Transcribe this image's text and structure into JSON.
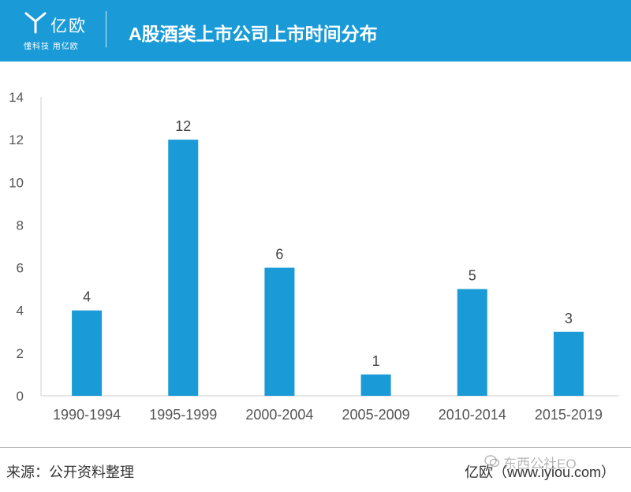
{
  "header": {
    "logo_name": "亿欧",
    "logo_slogan": "懂科技 用亿欧",
    "title": "A股酒类上市公司上市时间分布",
    "background_color": "#1a9bd7"
  },
  "chart_data": {
    "type": "bar",
    "title": "A股酒类上市公司上市时间分布",
    "xlabel": "",
    "ylabel": "",
    "categories": [
      "1990-1994",
      "1995-1999",
      "2000-2004",
      "2005-2009",
      "2010-2014",
      "2015-2019"
    ],
    "values": [
      4,
      12,
      6,
      1,
      5,
      3
    ],
    "ylim": [
      0,
      14
    ],
    "yticks": [
      0,
      2,
      4,
      6,
      8,
      10,
      12,
      14
    ],
    "bar_color": "#1a9bd7",
    "grid": false,
    "data_labels": true
  },
  "footer": {
    "source": "来源：公开资料整理",
    "brand": "亿欧（www.iyiou.com）",
    "watermark": "东西公社EO"
  }
}
